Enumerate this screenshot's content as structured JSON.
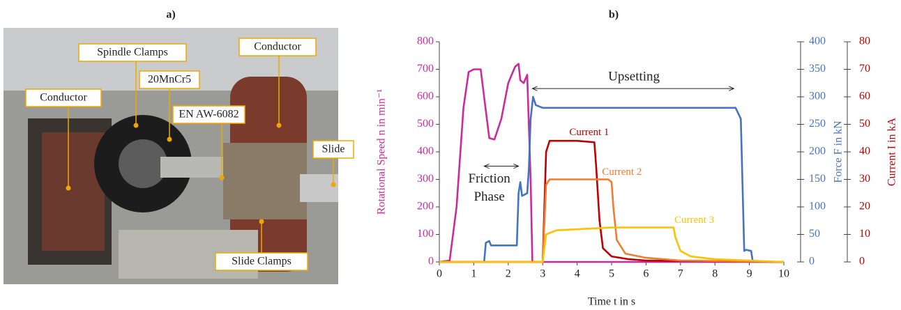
{
  "panel_a": {
    "label": "a)",
    "callouts": [
      "Spindle Clamps",
      "20MnCr5",
      "Conductor",
      "EN AW-6082",
      "Conductor",
      "Slide",
      "Slide Clamps"
    ]
  },
  "chart_data": {
    "type": "line",
    "title": "b)",
    "xlabel": "Time t in s",
    "ylabel": "Rotational Speed n in min⁻¹",
    "y2label": "Force F in kN",
    "y3label": "Current I in kA",
    "xlim": [
      0,
      10
    ],
    "xticks": [
      0,
      1,
      2,
      3,
      4,
      5,
      6,
      7,
      8,
      9,
      10
    ],
    "ylim": [
      0,
      800
    ],
    "yticks": [
      0,
      100,
      200,
      300,
      400,
      500,
      600,
      700,
      800
    ],
    "y2lim": [
      0,
      400
    ],
    "y2ticks": [
      0,
      50,
      100,
      150,
      200,
      250,
      300,
      350,
      400
    ],
    "y3lim": [
      0,
      80
    ],
    "y3ticks": [
      0,
      10,
      20,
      30,
      40,
      50,
      60,
      70,
      80
    ],
    "ycolor": "#cc2a9a",
    "y2color": "#4472c4",
    "y3color": "#c00000",
    "annotations": [
      {
        "text": "Upsetting"
      },
      {
        "text": [
          "Friction",
          "Phase"
        ]
      }
    ],
    "series": [
      {
        "color": "#cc2a9a",
        "x": [
          0,
          0.3,
          0.5,
          0.7,
          0.85,
          1.0,
          1.2,
          1.3,
          1.45,
          1.6,
          1.8,
          2.0,
          2.2,
          2.3,
          2.35,
          2.45,
          2.55,
          2.65,
          2.7,
          10
        ],
        "values": [
          0,
          5,
          200,
          560,
          690,
          700,
          700,
          600,
          450,
          445,
          520,
          650,
          710,
          720,
          660,
          650,
          680,
          300,
          0,
          0
        ]
      },
      {
        "color": "#4472c4",
        "axis": "y2",
        "x": [
          0,
          1.3,
          1.35,
          1.45,
          1.5,
          2.25,
          2.3,
          2.35,
          2.4,
          2.55,
          2.6,
          2.65,
          2.72,
          2.8,
          3.0,
          5,
          7,
          8.6,
          8.75,
          8.85,
          8.9,
          9.05,
          9.1,
          9.15,
          10
        ],
        "values": [
          0,
          0,
          35,
          38,
          30,
          30,
          125,
          145,
          120,
          125,
          170,
          260,
          300,
          285,
          280,
          280,
          280,
          280,
          260,
          20,
          22,
          20,
          0,
          0,
          0
        ]
      },
      {
        "name": "Current 1",
        "color": "#c00000",
        "axis": "y3",
        "x": [
          0,
          3.0,
          3.1,
          3.2,
          4.0,
          4.5,
          4.55,
          4.65,
          4.75,
          5.0,
          5.5,
          6,
          10
        ],
        "values": [
          0,
          0,
          40,
          44,
          44,
          43.5,
          35,
          15,
          5,
          2,
          1,
          0.5,
          0
        ]
      },
      {
        "name": "Current 2",
        "color": "#ed7d31",
        "axis": "y3",
        "x": [
          0,
          3.0,
          3.1,
          3.2,
          4.9,
          5.0,
          5.05,
          5.15,
          5.4,
          6,
          7,
          10
        ],
        "values": [
          0,
          0,
          28,
          30,
          30,
          29,
          20,
          8,
          3,
          1.5,
          0.5,
          0
        ]
      },
      {
        "name": "Current 3",
        "color": "#ffc000",
        "axis": "y3",
        "x": [
          0,
          3.0,
          3.1,
          3.4,
          5,
          6.8,
          6.85,
          7.0,
          7.3,
          8,
          9,
          10
        ],
        "values": [
          0,
          0,
          10,
          11.5,
          12.5,
          12.5,
          9,
          4,
          2,
          1,
          0.5,
          0
        ]
      }
    ]
  }
}
